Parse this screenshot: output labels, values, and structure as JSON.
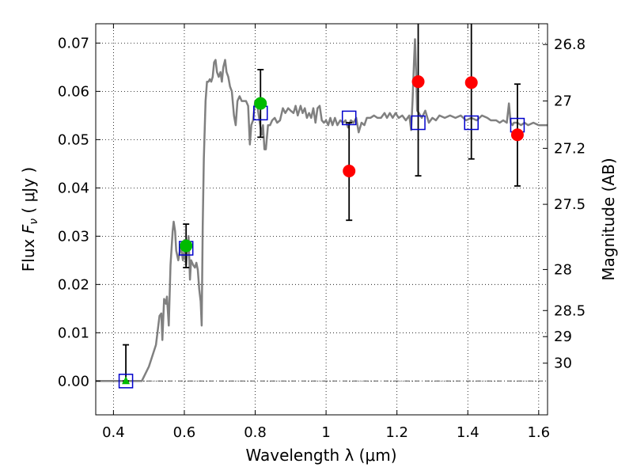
{
  "chart_data": {
    "type": "scatter",
    "xlabel": "Wavelength  λ (μm)",
    "ylabel": "Flux  F_ν  ( μJy )",
    "ylabel_parts": {
      "pre": "Flux  ",
      "sym": "F",
      "sub": "ν",
      "post": "  ( μJy )"
    },
    "y2label": "Magnitude (AB)",
    "xlim": [
      0.35,
      1.625
    ],
    "ylim": [
      -0.007,
      0.074
    ],
    "grid": true,
    "x_ticks": [
      0.4,
      0.6,
      0.8,
      1.0,
      1.2,
      1.4,
      1.6
    ],
    "x_tick_labels": [
      "0.4",
      "0.6",
      "0.8",
      "1",
      "1.2",
      "1.4",
      "1.6"
    ],
    "y_ticks": [
      0.0,
      0.01,
      0.02,
      0.03,
      0.04,
      0.05,
      0.06,
      0.07
    ],
    "y_tick_labels": [
      "0.00",
      "0.01",
      "0.02",
      "0.03",
      "0.04",
      "0.05",
      "0.06",
      "0.07"
    ],
    "magnitude_ticks": [
      {
        "label": "26.8",
        "flux": 0.0697
      },
      {
        "label": "27",
        "flux": 0.058
      },
      {
        "label": "27.2",
        "flux": 0.0482
      },
      {
        "label": "27.5",
        "flux": 0.0366
      },
      {
        "label": "28",
        "flux": 0.0231
      },
      {
        "label": "28.5",
        "flux": 0.0146
      },
      {
        "label": "29",
        "flux": 0.0092
      },
      {
        "label": "30",
        "flux": 0.0037
      }
    ],
    "series": [
      {
        "kind": "line",
        "color": "#808080",
        "points": [
          [
            0.3,
            0.0
          ],
          [
            0.48,
            0.0
          ],
          [
            0.5,
            0.003
          ],
          [
            0.52,
            0.0075
          ],
          [
            0.53,
            0.0135
          ],
          [
            0.535,
            0.014
          ],
          [
            0.538,
            0.0085
          ],
          [
            0.543,
            0.017
          ],
          [
            0.548,
            0.016
          ],
          [
            0.551,
            0.0175
          ],
          [
            0.556,
            0.0115
          ],
          [
            0.561,
            0.024
          ],
          [
            0.567,
            0.031
          ],
          [
            0.57,
            0.033
          ],
          [
            0.574,
            0.031
          ],
          [
            0.577,
            0.027
          ],
          [
            0.583,
            0.025
          ],
          [
            0.59,
            0.028
          ],
          [
            0.596,
            0.025
          ],
          [
            0.6,
            0.027
          ],
          [
            0.605,
            0.024
          ],
          [
            0.612,
            0.03
          ],
          [
            0.616,
            0.021
          ],
          [
            0.619,
            0.025
          ],
          [
            0.625,
            0.024
          ],
          [
            0.63,
            0.0235
          ],
          [
            0.634,
            0.0245
          ],
          [
            0.638,
            0.023
          ],
          [
            0.642,
            0.019
          ],
          [
            0.646,
            0.0165
          ],
          [
            0.649,
            0.0115
          ],
          [
            0.652,
            0.032
          ],
          [
            0.655,
            0.046
          ],
          [
            0.66,
            0.058
          ],
          [
            0.664,
            0.062
          ],
          [
            0.668,
            0.062
          ],
          [
            0.672,
            0.0625
          ],
          [
            0.676,
            0.062
          ],
          [
            0.68,
            0.063
          ],
          [
            0.684,
            0.066
          ],
          [
            0.688,
            0.0665
          ],
          [
            0.692,
            0.064
          ],
          [
            0.697,
            0.063
          ],
          [
            0.702,
            0.064
          ],
          [
            0.706,
            0.062
          ],
          [
            0.71,
            0.065
          ],
          [
            0.715,
            0.0665
          ],
          [
            0.719,
            0.064
          ],
          [
            0.724,
            0.063
          ],
          [
            0.729,
            0.061
          ],
          [
            0.734,
            0.06
          ],
          [
            0.74,
            0.055
          ],
          [
            0.745,
            0.053
          ],
          [
            0.75,
            0.058
          ],
          [
            0.756,
            0.059
          ],
          [
            0.762,
            0.058
          ],
          [
            0.768,
            0.058
          ],
          [
            0.774,
            0.058
          ],
          [
            0.78,
            0.057
          ],
          [
            0.785,
            0.049
          ],
          [
            0.789,
            0.053
          ],
          [
            0.794,
            0.054
          ],
          [
            0.8,
            0.058
          ],
          [
            0.806,
            0.057
          ],
          [
            0.812,
            0.054
          ],
          [
            0.818,
            0.051
          ],
          [
            0.822,
            0.053
          ],
          [
            0.826,
            0.048
          ],
          [
            0.83,
            0.048
          ],
          [
            0.836,
            0.053
          ],
          [
            0.842,
            0.053
          ],
          [
            0.848,
            0.054
          ],
          [
            0.855,
            0.0545
          ],
          [
            0.862,
            0.0535
          ],
          [
            0.87,
            0.054
          ],
          [
            0.878,
            0.0565
          ],
          [
            0.885,
            0.0555
          ],
          [
            0.893,
            0.0565
          ],
          [
            0.9,
            0.056
          ],
          [
            0.908,
            0.0555
          ],
          [
            0.914,
            0.057
          ],
          [
            0.92,
            0.055
          ],
          [
            0.928,
            0.057
          ],
          [
            0.934,
            0.0555
          ],
          [
            0.94,
            0.0565
          ],
          [
            0.946,
            0.0545
          ],
          [
            0.952,
            0.0555
          ],
          [
            0.958,
            0.0545
          ],
          [
            0.964,
            0.0565
          ],
          [
            0.97,
            0.0535
          ],
          [
            0.976,
            0.0565
          ],
          [
            0.982,
            0.057
          ],
          [
            0.988,
            0.054
          ],
          [
            0.994,
            0.0535
          ],
          [
            1.0,
            0.054
          ],
          [
            1.006,
            0.053
          ],
          [
            1.012,
            0.0545
          ],
          [
            1.018,
            0.053
          ],
          [
            1.025,
            0.0545
          ],
          [
            1.032,
            0.053
          ],
          [
            1.04,
            0.054
          ],
          [
            1.048,
            0.0535
          ],
          [
            1.055,
            0.054
          ],
          [
            1.062,
            0.0525
          ],
          [
            1.07,
            0.054
          ],
          [
            1.078,
            0.0535
          ],
          [
            1.085,
            0.0545
          ],
          [
            1.092,
            0.0515
          ],
          [
            1.1,
            0.0535
          ],
          [
            1.108,
            0.053
          ],
          [
            1.115,
            0.0545
          ],
          [
            1.125,
            0.0545
          ],
          [
            1.135,
            0.055
          ],
          [
            1.145,
            0.0545
          ],
          [
            1.155,
            0.0545
          ],
          [
            1.165,
            0.0555
          ],
          [
            1.172,
            0.0545
          ],
          [
            1.18,
            0.0555
          ],
          [
            1.188,
            0.0545
          ],
          [
            1.196,
            0.0555
          ],
          [
            1.205,
            0.0545
          ],
          [
            1.215,
            0.055
          ],
          [
            1.225,
            0.054
          ],
          [
            1.235,
            0.055
          ],
          [
            1.24,
            0.052
          ],
          [
            1.244,
            0.058
          ],
          [
            1.248,
            0.066
          ],
          [
            1.251,
            0.0708
          ],
          [
            1.254,
            0.064
          ],
          [
            1.257,
            0.056
          ],
          [
            1.262,
            0.0555
          ],
          [
            1.27,
            0.0545
          ],
          [
            1.28,
            0.056
          ],
          [
            1.29,
            0.0535
          ],
          [
            1.3,
            0.0545
          ],
          [
            1.31,
            0.054
          ],
          [
            1.32,
            0.055
          ],
          [
            1.335,
            0.0545
          ],
          [
            1.35,
            0.055
          ],
          [
            1.365,
            0.0545
          ],
          [
            1.38,
            0.055
          ],
          [
            1.395,
            0.054
          ],
          [
            1.41,
            0.0545
          ],
          [
            1.425,
            0.054
          ],
          [
            1.44,
            0.055
          ],
          [
            1.455,
            0.0545
          ],
          [
            1.465,
            0.054
          ],
          [
            1.48,
            0.054
          ],
          [
            1.49,
            0.0535
          ],
          [
            1.5,
            0.054
          ],
          [
            1.51,
            0.0535
          ],
          [
            1.516,
            0.0575
          ],
          [
            1.521,
            0.0535
          ],
          [
            1.526,
            0.053
          ],
          [
            1.53,
            0.0535
          ],
          [
            1.54,
            0.0535
          ],
          [
            1.55,
            0.053
          ],
          [
            1.56,
            0.0535
          ],
          [
            1.57,
            0.053
          ],
          [
            1.585,
            0.0535
          ],
          [
            1.6,
            0.053
          ],
          [
            1.625,
            0.053
          ]
        ]
      },
      {
        "kind": "model-photometry",
        "marker": "open-square",
        "color": "#0000cc",
        "points": [
          [
            0.435,
            0.0
          ],
          [
            0.605,
            0.0275
          ],
          [
            0.815,
            0.0555
          ],
          [
            1.065,
            0.0545
          ],
          [
            1.26,
            0.0535
          ],
          [
            1.41,
            0.0535
          ],
          [
            1.54,
            0.053
          ]
        ]
      },
      {
        "kind": "observed-green",
        "marker": "circle",
        "color": "#00bb00",
        "points": [
          [
            0.605,
            0.028,
            0.0235,
            0.0325
          ],
          [
            0.815,
            0.0575,
            0.0505,
            0.0645
          ]
        ]
      },
      {
        "kind": "observed-red",
        "marker": "circle",
        "color": "#ff0000",
        "points": [
          [
            1.065,
            0.0435,
            0.0333,
            0.0535
          ],
          [
            1.26,
            0.062,
            0.0425,
            0.075
          ],
          [
            1.41,
            0.0618,
            0.046,
            0.075
          ],
          [
            1.54,
            0.051,
            0.0404,
            0.0615
          ]
        ]
      },
      {
        "kind": "upper-limit",
        "marker": "triangle",
        "color": "#00bb00",
        "points": [
          [
            0.435,
            0.0,
            0.0,
            0.0075
          ]
        ]
      }
    ]
  }
}
